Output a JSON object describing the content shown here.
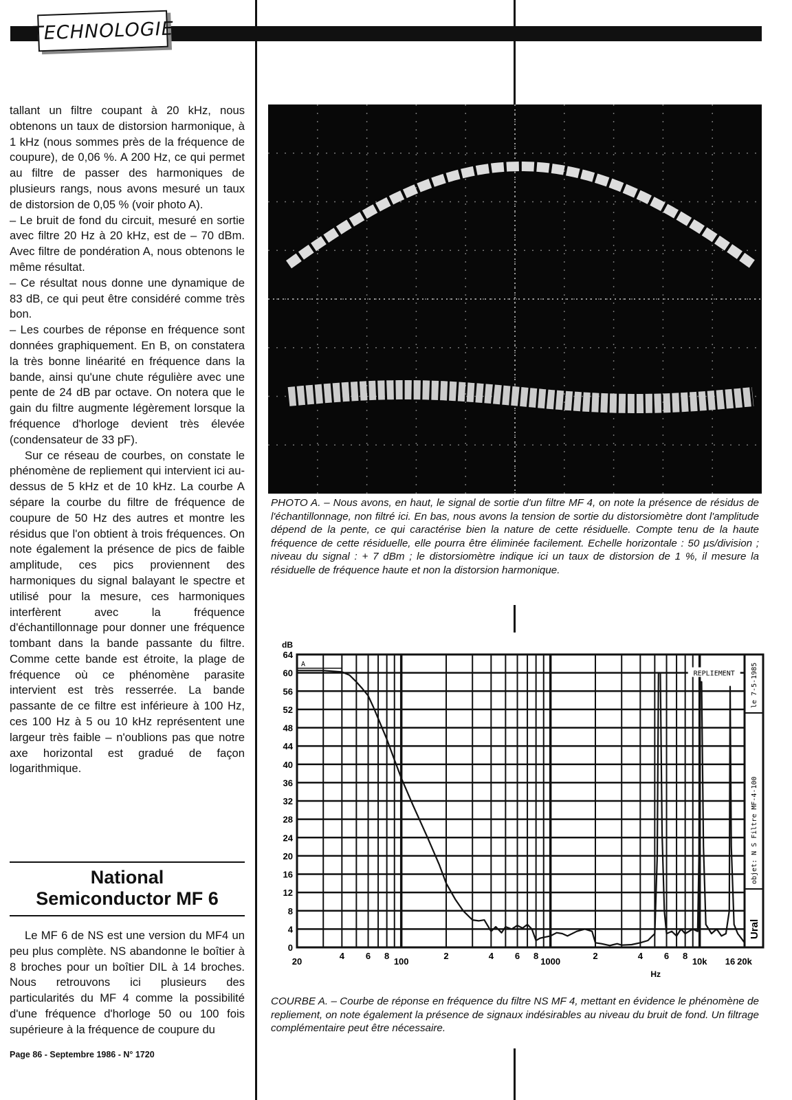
{
  "header": {
    "section_label": "TECHNOLOGIE"
  },
  "left_column": {
    "paragraphs": [
      "tallant un filtre coupant à 20 kHz, nous obtenons un taux de distorsion harmonique, à 1 kHz (nous sommes près de la fréquence de coupure), de 0,06 %. A 200 Hz, ce qui permet au filtre de passer des harmoniques de plusieurs rangs, nous avons mesuré un taux de distorsion de 0,05 % (voir photo A).",
      "– Le bruit de fond du circuit, mesuré en sortie avec filtre 20 Hz à 20 kHz, est de – 70 dBm. Avec filtre de pondération A, nous obtenons le même résultat.",
      "– Ce résultat nous donne une dynamique de 83 dB, ce qui peut être considéré comme très bon.",
      "– Les courbes de réponse en fréquence sont données graphiquement. En B, on constatera la très bonne linéarité en fréquence dans la bande, ainsi qu'une chute régulière avec une pente de 24 dB par octave. On notera que le gain du filtre augmente légèrement lorsque la fréquence d'horloge devient très élevée (condensateur de 33 pF).",
      "Sur ce réseau de courbes, on constate le phénomène de repliement qui intervient ici au-dessus de 5 kHz et de 10 kHz. La courbe A sépare la courbe du filtre de fréquence de coupure de 50 Hz des autres et montre les résidus que l'on obtient à trois fréquences. On note également la présence de pics de faible amplitude, ces pics proviennent des harmoniques du signal balayant le spectre et utilisé pour la mesure, ces harmoniques interfèrent avec la fréquence d'échantillonnage pour donner une fréquence tombant dans la bande passante du filtre. Comme cette bande est étroite, la plage de fréquence où ce phénomène parasite intervient est très resserrée. La bande passante de ce filtre est inférieure à 100 Hz, ces 100 Hz à 5 ou 10 kHz représentent une largeur très faible – n'oublions pas que notre axe horizontal est gradué de façon logarithmique."
    ]
  },
  "section": {
    "title_line1": "National",
    "title_line2": "Semiconductor MF 6",
    "paragraph": "Le MF 6 de NS est une version du MF4 un peu plus complète. NS abandonne le boîtier à 8 broches pour un boîtier DIL à 14 broches. Nous retrouvons ici plusieurs des particularités du MF 4 comme la possibilité d'une fréquence d'horloge 50 ou 100 fois supérieure à la fréquence de coupure du"
  },
  "footer": {
    "text": "Page 86 - Septembre 1986 - N° 1720"
  },
  "photo": {
    "caption": "PHOTO A. – Nous avons, en haut, le signal de sortie d'un filtre MF 4, on note la présence de résidus de l'échantillonnage, non filtré ici. En bas, nous avons la tension de sortie du distorsiomètre dont l'amplitude dépend de la pente, ce qui caractérise bien la nature de cette résiduelle. Compte tenu de la haute fréquence de cette résiduelle, elle pourra être éliminée facilement. Echelle horizontale : 50 µs/division ; niveau du signal : + 7 dBm ; le distorsiomètre indique ici un taux de distorsion de 1 %, il mesure la résiduelle de fréquence haute et non la distorsion harmonique."
  },
  "chart_caption": "COURBE A. – Courbe de réponse en fréquence du filtre NS MF 4, mettant en évidence le phénomène de repliement, on note également la présence de signaux indésirables au niveau du bruit de fond. Un filtrage complémentaire peut être nécessaire.",
  "chart_data": {
    "type": "line",
    "ylabel": "dB",
    "xlabel": "Hz",
    "xscale": "log",
    "xlim": [
      20,
      20000
    ],
    "ylim": [
      0,
      64
    ],
    "grid": true,
    "yticks": [
      0,
      4,
      8,
      12,
      16,
      20,
      24,
      28,
      32,
      36,
      40,
      44,
      48,
      52,
      56,
      60,
      64
    ],
    "xticks": [
      {
        "value": 20,
        "label": "20"
      },
      {
        "value": 40,
        "label": "4"
      },
      {
        "value": 60,
        "label": "6"
      },
      {
        "value": 80,
        "label": "8"
      },
      {
        "value": 100,
        "label": "100"
      },
      {
        "value": 200,
        "label": "2"
      },
      {
        "value": 400,
        "label": "4"
      },
      {
        "value": 600,
        "label": "6"
      },
      {
        "value": 800,
        "label": "8"
      },
      {
        "value": 1000,
        "label": "1000"
      },
      {
        "value": 2000,
        "label": "2"
      },
      {
        "value": 4000,
        "label": "4"
      },
      {
        "value": 6000,
        "label": "6"
      },
      {
        "value": 8000,
        "label": "8"
      },
      {
        "value": 10000,
        "label": "10k"
      },
      {
        "value": 16000,
        "label": "16"
      },
      {
        "value": 20000,
        "label": "20k"
      }
    ],
    "annotations": {
      "curve_label": "A",
      "aliasing_label": "REPLIEMENT",
      "side_object": "objet: N S Filtre MF-4-100",
      "side_date": "le 7-5-1985",
      "logo": "Ural"
    },
    "series": [
      {
        "x": [
          20,
          30,
          40,
          45,
          50,
          55,
          60,
          65,
          70,
          80,
          90,
          100,
          120,
          150,
          180,
          200,
          230,
          260,
          300,
          330,
          360,
          400,
          430,
          470,
          500,
          550,
          600,
          650,
          700,
          750,
          800,
          850,
          900,
          1000,
          1100,
          1200,
          1300,
          1500,
          1700,
          1900,
          2000,
          2200,
          2500,
          2800,
          3000,
          3500,
          4000,
          4500,
          5000,
          5200,
          5300,
          5450,
          5600,
          5800,
          6000,
          6500,
          7000,
          7500,
          8000,
          9000,
          9700,
          9900,
          10000,
          10300,
          10600,
          11000,
          12000,
          13000,
          14000,
          15000,
          15800,
          16000,
          16300,
          17000,
          18000,
          19000,
          20000
        ],
        "y": [
          60.5,
          60.5,
          60.2,
          59.5,
          58,
          56.5,
          55,
          52.5,
          50,
          45.5,
          41,
          37,
          31,
          24,
          18,
          14,
          10.5,
          8,
          6,
          5.8,
          6,
          3.5,
          4.5,
          3.2,
          4.5,
          4,
          4.8,
          4.2,
          5,
          4,
          1.5,
          2,
          2.2,
          2.5,
          3.2,
          3,
          2.5,
          3.5,
          4,
          3.5,
          1,
          0.8,
          0.4,
          0.8,
          0.5,
          0.6,
          1,
          1.5,
          3,
          20,
          60,
          60,
          25,
          8,
          3,
          3.5,
          2.5,
          4,
          3,
          4,
          3.5,
          20,
          58,
          58,
          22,
          5,
          3,
          4,
          2.5,
          3,
          8,
          57,
          22,
          5,
          3,
          2,
          1
        ]
      }
    ]
  }
}
